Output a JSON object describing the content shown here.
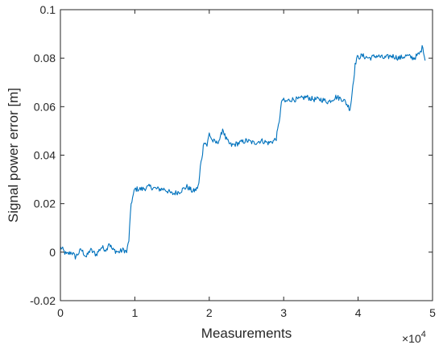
{
  "chart_data": {
    "type": "line",
    "title": "",
    "xlabel": "Measurements",
    "ylabel": "Signal power error [m]",
    "x_exponent_label": "×10",
    "x_exponent_power": "4",
    "xlim": [
      0,
      50000
    ],
    "ylim": [
      -0.02,
      0.1
    ],
    "x_ticks": [
      0,
      10000,
      20000,
      30000,
      40000,
      50000
    ],
    "x_tick_labels": [
      "0",
      "1",
      "2",
      "3",
      "4",
      "5"
    ],
    "y_ticks": [
      -0.02,
      0,
      0.02,
      0.04,
      0.06,
      0.08,
      0.1
    ],
    "y_tick_labels": [
      "-0.02",
      "0",
      "0.02",
      "0.04",
      "0.06",
      "0.08",
      "0.1"
    ],
    "grid": false,
    "series": [
      {
        "color": "#0072BD",
        "x": [
          0,
          300,
          800,
          1500,
          2000,
          2800,
          3500,
          4000,
          4800,
          5500,
          6200,
          6500,
          7000,
          7800,
          8500,
          8900,
          9200,
          9500,
          10000,
          11000,
          12000,
          13000,
          14000,
          15000,
          16000,
          16500,
          17000,
          17800,
          18300,
          18600,
          18800,
          19100,
          19300,
          19700,
          20000,
          20400,
          21000,
          21500,
          21800,
          22200,
          22600,
          23000,
          24000,
          25000,
          26000,
          27000,
          28000,
          28700,
          29000,
          29300,
          29600,
          29800,
          30200,
          31000,
          32000,
          33000,
          34000,
          35000,
          36000,
          37000,
          38000,
          38500,
          38900,
          39100,
          39300,
          39600,
          39800,
          40500,
          41500,
          42500,
          43500,
          44500,
          45500,
          46500,
          47500,
          48300,
          48700,
          49000
        ],
        "y": [
          0.002,
          0.001,
          -0.001,
          0.0,
          -0.002,
          0.001,
          -0.002,
          0.001,
          -0.001,
          0.002,
          0.001,
          0.004,
          0.001,
          0.0,
          0.001,
          0.0,
          0.005,
          0.02,
          0.026,
          0.026,
          0.027,
          0.026,
          0.026,
          0.024,
          0.025,
          0.026,
          0.027,
          0.025,
          0.026,
          0.028,
          0.035,
          0.041,
          0.046,
          0.044,
          0.049,
          0.046,
          0.045,
          0.047,
          0.051,
          0.047,
          0.045,
          0.044,
          0.045,
          0.046,
          0.045,
          0.046,
          0.045,
          0.046,
          0.047,
          0.052,
          0.059,
          0.063,
          0.062,
          0.063,
          0.063,
          0.064,
          0.063,
          0.063,
          0.062,
          0.064,
          0.063,
          0.061,
          0.059,
          0.063,
          0.069,
          0.077,
          0.08,
          0.081,
          0.08,
          0.081,
          0.08,
          0.081,
          0.08,
          0.081,
          0.08,
          0.082,
          0.085,
          0.079
        ]
      }
    ]
  }
}
